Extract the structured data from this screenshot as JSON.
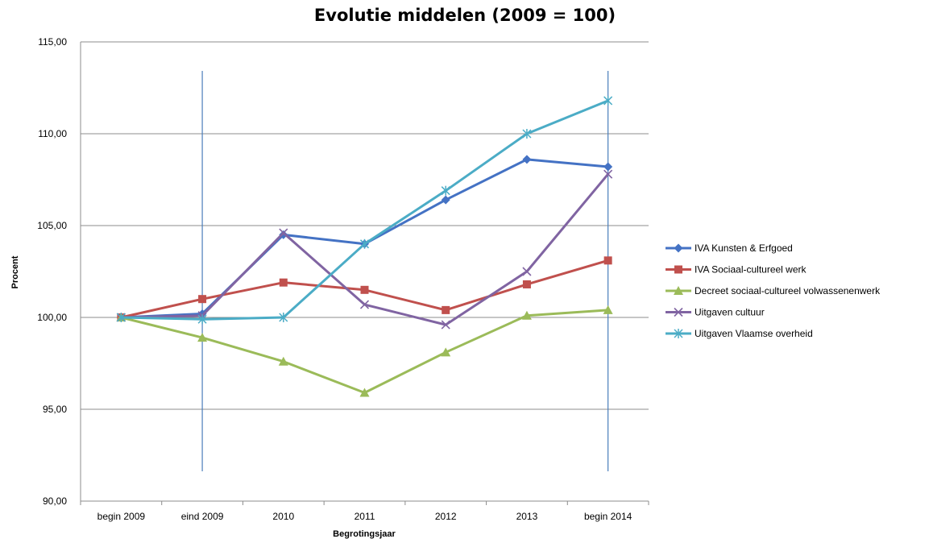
{
  "chart_data": {
    "type": "line",
    "title": "Evolutie middelen (2009 = 100)",
    "xlabel": "Begrotingsjaar",
    "ylabel": "Procent",
    "categories": [
      "begin 2009",
      "eind 2009",
      "2010",
      "2011",
      "2012",
      "2013",
      "begin 2014"
    ],
    "ylim": [
      90,
      115
    ],
    "yticks": [
      "90,00",
      "95,00",
      "100,00",
      "105,00",
      "110,00",
      "115,00"
    ],
    "ytick_values": [
      90,
      95,
      100,
      105,
      110,
      115
    ],
    "grid": "horizontal",
    "legend_position": "right",
    "vertical_markers": [
      "eind 2009",
      "begin 2014"
    ],
    "series": [
      {
        "name": "IVA Kunsten & Erfgoed",
        "color": "#4472C4",
        "marker": "diamond",
        "values": [
          100.0,
          100.2,
          104.5,
          104.0,
          106.4,
          108.6,
          108.2
        ]
      },
      {
        "name": "IVA Sociaal-cultureel werk",
        "color": "#C0504D",
        "marker": "square",
        "values": [
          100.0,
          101.0,
          101.9,
          101.5,
          100.4,
          101.8,
          103.1
        ]
      },
      {
        "name": "Decreet sociaal-cultureel volwassenenwerk",
        "color": "#9BBB59",
        "marker": "triangle",
        "values": [
          100.0,
          98.9,
          97.6,
          95.9,
          98.1,
          100.1,
          100.4
        ]
      },
      {
        "name": "Uitgaven cultuur",
        "color": "#8064A2",
        "marker": "x",
        "values": [
          100.0,
          100.1,
          104.6,
          100.7,
          99.6,
          102.5,
          107.8
        ]
      },
      {
        "name": "Uitgaven Vlaamse overheid",
        "color": "#4BACC6",
        "marker": "star",
        "values": [
          100.0,
          99.9,
          100.0,
          104.0,
          106.9,
          110.0,
          111.8
        ]
      }
    ]
  }
}
